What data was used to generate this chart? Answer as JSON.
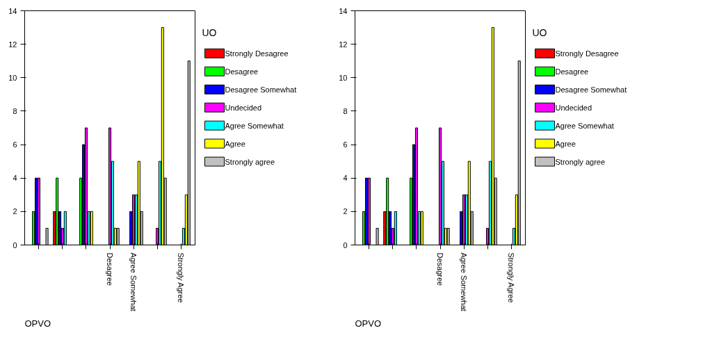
{
  "chart_data": [
    {
      "type": "bar",
      "legend_title": "UO",
      "annotations": [
        "OPVO"
      ],
      "categories": [
        null,
        null,
        null,
        "Desagree",
        "Agree Somewhat",
        null,
        "Strongly Agree"
      ],
      "ylim": [
        0,
        14
      ],
      "yticks": [
        0,
        2,
        4,
        6,
        8,
        10,
        12,
        14
      ],
      "grid": false,
      "legend": "right",
      "series": [
        {
          "name": "Strongly Desagree",
          "color": "#ff0000",
          "values": [
            0,
            2,
            0,
            0,
            0,
            0,
            0
          ]
        },
        {
          "name": "Desagree",
          "color": "#00ff00",
          "values": [
            2,
            4,
            4,
            0,
            0,
            0,
            0
          ]
        },
        {
          "name": "Desagree Somewhat",
          "color": "#0000ff",
          "values": [
            4,
            2,
            6,
            0,
            2,
            0,
            0
          ]
        },
        {
          "name": "Undecided",
          "color": "#ff00ff",
          "values": [
            4,
            1,
            7,
            7,
            3,
            1,
            0
          ]
        },
        {
          "name": "Agree Somewhat",
          "color": "#00ffff",
          "values": [
            0,
            2,
            2,
            5,
            3,
            5,
            1
          ]
        },
        {
          "name": "Agree",
          "color": "#ffff00",
          "values": [
            0,
            0,
            2,
            1,
            5,
            13,
            3
          ]
        },
        {
          "name": "Strongly agree",
          "color": "#c0c0c0",
          "values": [
            1,
            0,
            0,
            1,
            2,
            4,
            11
          ]
        }
      ]
    },
    {
      "type": "bar",
      "legend_title": "UO",
      "annotations": [
        "OPVO"
      ],
      "categories": [
        null,
        null,
        null,
        "Desagree",
        "Agree Somewhat",
        null,
        "Strongly Agree"
      ],
      "ylim": [
        0,
        14
      ],
      "yticks": [
        0,
        2,
        4,
        6,
        8,
        10,
        12,
        14
      ],
      "grid": false,
      "legend": "right",
      "series": [
        {
          "name": "Strongly Desagree",
          "color": "#ff0000",
          "values": [
            0,
            2,
            0,
            0,
            0,
            0,
            0
          ]
        },
        {
          "name": "Desagree",
          "color": "#00ff00",
          "values": [
            2,
            4,
            4,
            0,
            0,
            0,
            0
          ]
        },
        {
          "name": "Desagree Somewhat",
          "color": "#0000ff",
          "values": [
            4,
            2,
            6,
            0,
            2,
            0,
            0
          ]
        },
        {
          "name": "Undecided",
          "color": "#ff00ff",
          "values": [
            4,
            1,
            7,
            7,
            3,
            1,
            0
          ]
        },
        {
          "name": "Agree Somewhat",
          "color": "#00ffff",
          "values": [
            0,
            2,
            2,
            5,
            3,
            5,
            1
          ]
        },
        {
          "name": "Agree",
          "color": "#ffff00",
          "values": [
            0,
            0,
            2,
            1,
            5,
            13,
            3
          ]
        },
        {
          "name": "Strongly agree",
          "color": "#c0c0c0",
          "values": [
            1,
            0,
            0,
            1,
            2,
            4,
            11
          ]
        }
      ]
    }
  ]
}
